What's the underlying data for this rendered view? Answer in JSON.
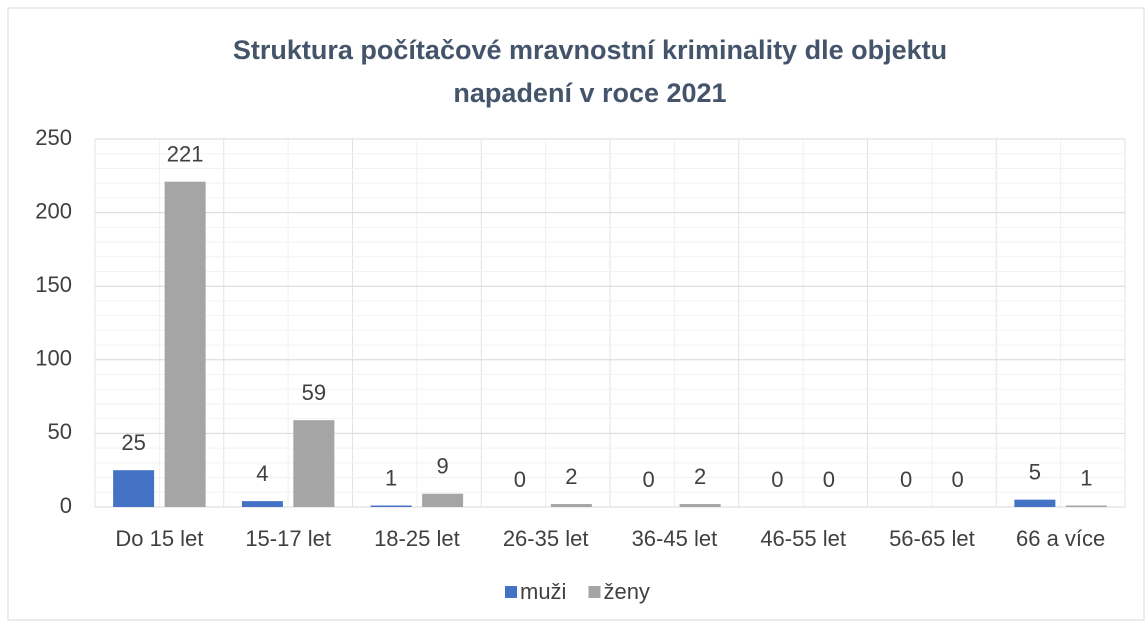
{
  "chart_data": {
    "type": "bar",
    "title": [
      "Struktura počítačové mravnostní kriminality dle objektu",
      "napadení v roce 2021"
    ],
    "categories": [
      "Do 15 let",
      "15-17 let",
      "18-25 let",
      "26-35 let",
      "36-45 let",
      "46-55 let",
      "56-65 let",
      "66 a více"
    ],
    "series": [
      {
        "name": "muži",
        "color": "#4472c4",
        "values": [
          25,
          4,
          1,
          0,
          0,
          0,
          0,
          5
        ]
      },
      {
        "name": "ženy",
        "color": "#a5a5a5",
        "values": [
          221,
          59,
          9,
          2,
          2,
          0,
          0,
          1
        ]
      }
    ],
    "ylim": [
      0,
      250
    ],
    "yticks": [
      0,
      50,
      100,
      150,
      200,
      250
    ],
    "grid": true,
    "legend": "bottom"
  }
}
